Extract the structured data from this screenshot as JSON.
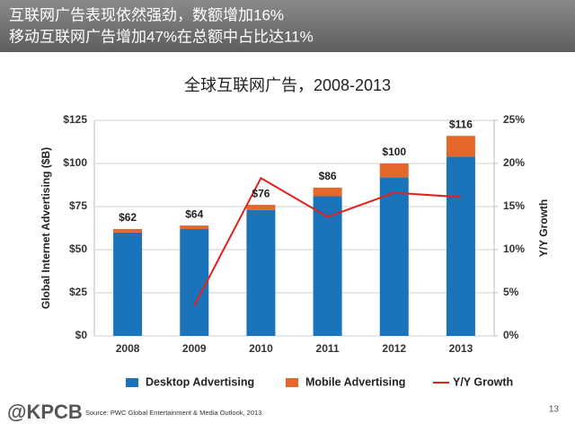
{
  "header": {
    "line1": "互联网广告表现依然强劲，数额增加16%",
    "line2": "移动互联网广告增加47%在总额中占比达11%"
  },
  "chart_data": {
    "type": "bar",
    "stacked": true,
    "title": "全球互联网广告，2008-2013",
    "categories": [
      "2008",
      "2009",
      "2010",
      "2011",
      "2012",
      "2013"
    ],
    "series": [
      {
        "name": "Desktop Advertising",
        "color": "#1b74ba",
        "values": [
          60,
          62,
          73,
          81,
          92,
          104
        ]
      },
      {
        "name": "Mobile Advertising",
        "color": "#e4672b",
        "values": [
          2,
          2,
          3,
          5,
          8,
          12
        ]
      },
      {
        "name": "Y/Y Growth",
        "type": "line",
        "axis": "y2",
        "color": "#e3211c",
        "values": [
          null,
          3.5,
          18.3,
          13.8,
          16.6,
          16.1
        ]
      }
    ],
    "totals": [
      62,
      64,
      76,
      86,
      100,
      116
    ],
    "total_labels": [
      "$62",
      "$64",
      "$76",
      "$86",
      "$100",
      "$116"
    ],
    "y_label": "Global Internet Advertising ($B)",
    "y2_label": "Y/Y Growth",
    "ylim": [
      0,
      125
    ],
    "yticks": [
      {
        "value": 0,
        "label": "$0"
      },
      {
        "value": 25,
        "label": "$25"
      },
      {
        "value": 50,
        "label": "$50"
      },
      {
        "value": 75,
        "label": "$75"
      },
      {
        "value": 100,
        "label": "$100"
      },
      {
        "value": 125,
        "label": "$125"
      }
    ],
    "y2lim": [
      0,
      25
    ],
    "y2ticks": [
      {
        "value": 0,
        "label": "0%"
      },
      {
        "value": 5,
        "label": "5%"
      },
      {
        "value": 10,
        "label": "10%"
      },
      {
        "value": 15,
        "label": "15%"
      },
      {
        "value": 20,
        "label": "20%"
      },
      {
        "value": 25,
        "label": "25%"
      }
    ],
    "grid": true,
    "legend": "bottom"
  },
  "footer": {
    "brand": "@KPCB",
    "source": "Source: PWC Global Entertainment & Media Outlook, 2013.",
    "page": "13"
  }
}
